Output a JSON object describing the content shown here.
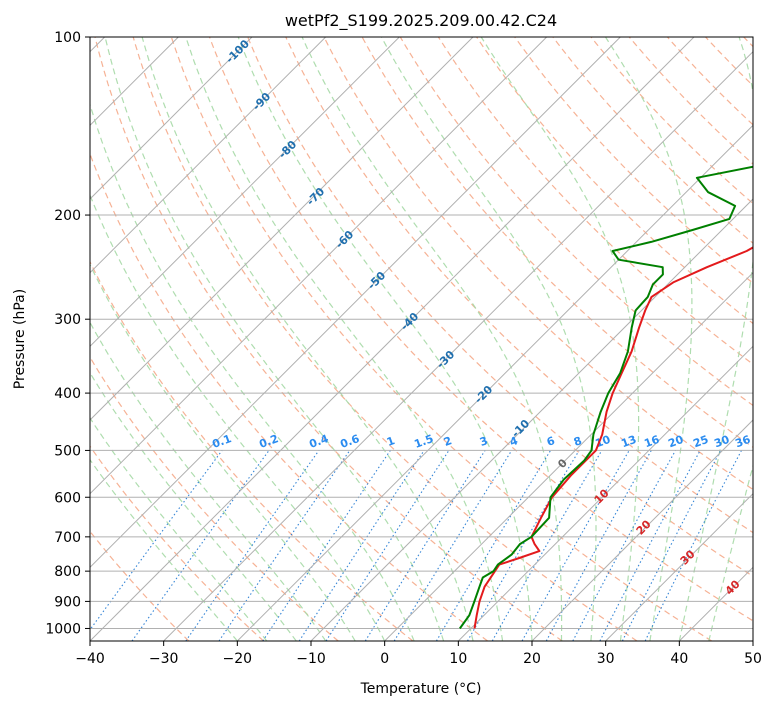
{
  "chart_data": {
    "type": "line",
    "title": "wetPf2_S199.2025.209.00.42.C24",
    "xlabel": "Temperature (°C)",
    "ylabel": "Pressure (hPa)",
    "xlim": [
      -40,
      50
    ],
    "ylim": [
      1050,
      100
    ],
    "y_scale": "log",
    "x_ticks": [
      -40,
      -30,
      -20,
      -10,
      0,
      10,
      20,
      30,
      40,
      50
    ],
    "y_ticks": [
      100,
      200,
      300,
      400,
      500,
      600,
      700,
      800,
      900,
      1000
    ],
    "grid": true,
    "series": [
      {
        "color": "#e31a1c",
        "values": [
          {
            "p": 1000,
            "t": 10.5
          },
          {
            "p": 950,
            "t": 9.0
          },
          {
            "p": 900,
            "t": 7.5
          },
          {
            "p": 850,
            "t": 6.2
          },
          {
            "p": 800,
            "t": 5.5
          },
          {
            "p": 780,
            "t": 5.2
          },
          {
            "p": 760,
            "t": 7.0
          },
          {
            "p": 740,
            "t": 8.8
          },
          {
            "p": 720,
            "t": 7.2
          },
          {
            "p": 700,
            "t": 5.8
          },
          {
            "p": 650,
            "t": 4.5
          },
          {
            "p": 600,
            "t": 3.2
          },
          {
            "p": 550,
            "t": 2.8
          },
          {
            "p": 500,
            "t": 2.8
          },
          {
            "p": 470,
            "t": 1.5
          },
          {
            "p": 430,
            "t": -1.0
          },
          {
            "p": 400,
            "t": -2.7
          },
          {
            "p": 370,
            "t": -4.2
          },
          {
            "p": 340,
            "t": -5.8
          },
          {
            "p": 310,
            "t": -8.0
          },
          {
            "p": 290,
            "t": -9.5
          },
          {
            "p": 275,
            "t": -10.5
          },
          {
            "p": 260,
            "t": -9.5
          },
          {
            "p": 245,
            "t": -7.0
          },
          {
            "p": 230,
            "t": -3.8
          },
          {
            "p": 215,
            "t": -2.0
          },
          {
            "p": 205,
            "t": 0.5
          },
          {
            "p": 195,
            "t": 5.0
          },
          {
            "p": 180,
            "t": 10.0
          },
          {
            "p": 160,
            "t": 13.0
          },
          {
            "p": 140,
            "t": 17.5
          },
          {
            "p": 125,
            "t": 20.0
          },
          {
            "p": 110,
            "t": 23.5
          },
          {
            "p": 100,
            "t": 27.5
          }
        ]
      },
      {
        "color": "#008000",
        "values": [
          {
            "p": 1000,
            "t": 8.5
          },
          {
            "p": 950,
            "t": 8.0
          },
          {
            "p": 900,
            "t": 6.8
          },
          {
            "p": 850,
            "t": 5.5
          },
          {
            "p": 820,
            "t": 4.7
          },
          {
            "p": 800,
            "t": 5.3
          },
          {
            "p": 780,
            "t": 5.0
          },
          {
            "p": 750,
            "t": 5.5
          },
          {
            "p": 720,
            "t": 5.2
          },
          {
            "p": 700,
            "t": 5.8
          },
          {
            "p": 650,
            "t": 5.6
          },
          {
            "p": 600,
            "t": 3.0
          },
          {
            "p": 560,
            "t": 2.4
          },
          {
            "p": 520,
            "t": 2.6
          },
          {
            "p": 500,
            "t": 2.2
          },
          {
            "p": 470,
            "t": 0.3
          },
          {
            "p": 430,
            "t": -1.8
          },
          {
            "p": 400,
            "t": -3.3
          },
          {
            "p": 370,
            "t": -4.4
          },
          {
            "p": 340,
            "t": -6.3
          },
          {
            "p": 310,
            "t": -9.0
          },
          {
            "p": 290,
            "t": -10.8
          },
          {
            "p": 275,
            "t": -11.0
          },
          {
            "p": 262,
            "t": -12.0
          },
          {
            "p": 252,
            "t": -12.0
          },
          {
            "p": 245,
            "t": -13.0
          },
          {
            "p": 238,
            "t": -20.0
          },
          {
            "p": 230,
            "t": -22.0
          },
          {
            "p": 222,
            "t": -18.0
          },
          {
            "p": 212,
            "t": -14.0
          },
          {
            "p": 203,
            "t": -10.5
          },
          {
            "p": 193,
            "t": -11.5
          },
          {
            "p": 183,
            "t": -17.0
          },
          {
            "p": 173,
            "t": -20.5
          },
          {
            "p": 163,
            "t": -12.0
          },
          {
            "p": 150,
            "t": -8.3
          },
          {
            "p": 140,
            "t": -8.8
          },
          {
            "p": 128,
            "t": -5.5
          },
          {
            "p": 118,
            "t": -5.8
          },
          {
            "p": 110,
            "t": -3.0
          },
          {
            "p": 100,
            "t": 1.5
          }
        ]
      }
    ],
    "background_lines": {
      "isotherm_color": "#b0b0b0",
      "dry_adiabat_color": "#f4a582",
      "moist_adiabat_color": "#a6d9a6",
      "mixing_ratio_color": "#1f78d1",
      "moist_adiabat_label_color": "#1f6fae",
      "mixing_ratio_label_color": "#2b8cf0",
      "high_label_color": "#d62728",
      "moist_adiabat_labels": [
        "-100",
        "-90",
        "-80",
        "-70",
        "-60",
        "-50",
        "-40",
        "-30",
        "-20",
        "-10",
        "0",
        "10",
        "20",
        "30",
        "40"
      ],
      "mixing_ratio_labels": [
        "0.1",
        "0.2",
        "0.4",
        "0.6",
        "1",
        "1.5",
        "2",
        "3",
        "4",
        "6",
        "8",
        "10",
        "13",
        "16",
        "20",
        "25",
        "30",
        "36"
      ]
    }
  }
}
